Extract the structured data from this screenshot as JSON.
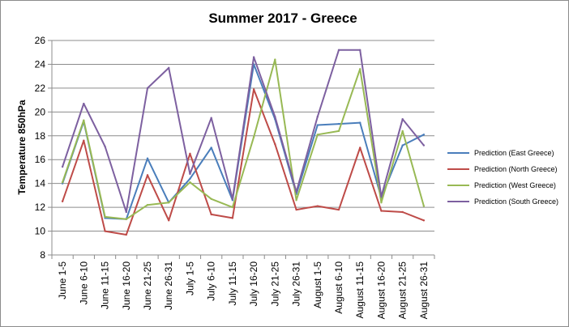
{
  "chart_data": {
    "type": "line",
    "title": "Summer 2017 - Greece",
    "xlabel": "",
    "ylabel": "Temperature 850hPa",
    "ylim": [
      8,
      26
    ],
    "yticks": [
      8,
      10,
      12,
      14,
      16,
      18,
      20,
      22,
      24,
      26
    ],
    "grid": "horizontal",
    "legend_position": "right",
    "categories": [
      "June 1-5",
      "June 6-10",
      "June 11-15",
      "June 16-20",
      "June 21-25",
      "June 26-31",
      "July 1-5",
      "July 6-10",
      "July 11-15",
      "July 16-20",
      "July 21-25",
      "July 26-31",
      "August 1-5",
      "August 6-10",
      "August 11-15",
      "August 16-20",
      "August 21-25",
      "August 26-31"
    ],
    "series": [
      {
        "name": "Prediction (East Greece)",
        "color": "#4a7ebb",
        "values": [
          14.0,
          19.2,
          11.1,
          11.0,
          16.1,
          12.4,
          14.4,
          17.0,
          12.6,
          24.0,
          19.4,
          13.1,
          18.9,
          19.0,
          19.1,
          12.8,
          17.2,
          18.1
        ]
      },
      {
        "name": "Prediction (North Greece)",
        "color": "#be4b48",
        "values": [
          12.5,
          17.6,
          10.0,
          9.7,
          14.7,
          10.9,
          16.5,
          11.4,
          11.1,
          21.9,
          17.3,
          11.8,
          12.1,
          11.8,
          17.0,
          11.7,
          11.6,
          10.9
        ]
      },
      {
        "name": "Prediction (West Greece)",
        "color": "#98b954",
        "values": [
          14.1,
          19.3,
          11.2,
          11.0,
          12.2,
          12.4,
          14.1,
          12.7,
          12.0,
          17.9,
          24.4,
          12.6,
          18.1,
          18.4,
          23.6,
          12.4,
          18.4,
          12.1
        ]
      },
      {
        "name": "Prediction (South Greece)",
        "color": "#7d60a0",
        "values": [
          15.4,
          20.7,
          17.1,
          11.6,
          22.0,
          23.7,
          14.8,
          19.5,
          12.7,
          24.6,
          19.6,
          13.3,
          19.6,
          25.2,
          25.2,
          12.9,
          19.4,
          17.2
        ]
      }
    ]
  }
}
